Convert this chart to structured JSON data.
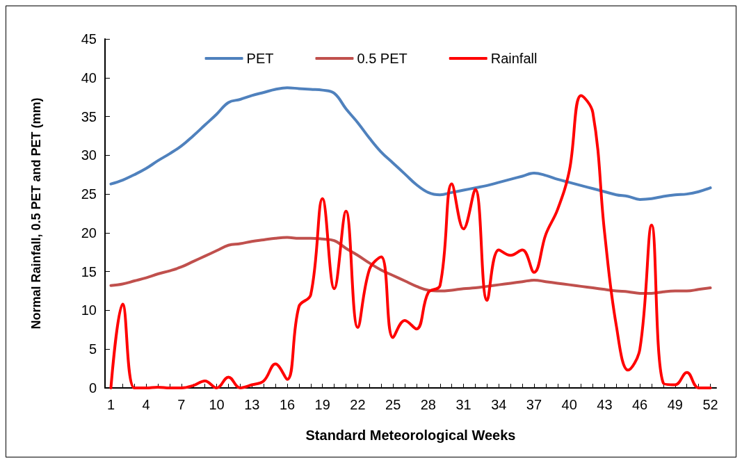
{
  "chart_data": {
    "type": "line",
    "xlabel": "Standard Meteorological Weeks",
    "ylabel": "Normal Rainfall, 0.5 PET and PET (mm)",
    "categories": [
      "1",
      null,
      null,
      "4",
      null,
      null,
      "7",
      null,
      null,
      "10",
      null,
      null,
      "13",
      null,
      null,
      "16",
      null,
      null,
      "19",
      null,
      null,
      "22",
      null,
      null,
      "25",
      null,
      null,
      "28",
      null,
      null,
      "31",
      null,
      null,
      "34",
      null,
      null,
      "37",
      null,
      null,
      "40",
      null,
      null,
      "43",
      null,
      null,
      "46",
      null,
      null,
      "49",
      null,
      null,
      "52"
    ],
    "series": [
      {
        "name": "PET",
        "color": "#4f81bd",
        "values": [
          26.3,
          26.8,
          27.5,
          28.3,
          29.3,
          30.2,
          31.2,
          32.5,
          33.9,
          35.3,
          36.8,
          37.2,
          37.7,
          38.1,
          38.5,
          38.7,
          38.6,
          38.5,
          38.4,
          38,
          36,
          34.2,
          32.2,
          30.4,
          29,
          27.6,
          26.2,
          25.2,
          24.9,
          25.2,
          25.5,
          25.8,
          26.1,
          26.5,
          26.9,
          27.3,
          27.7,
          27.4,
          26.9,
          26.5,
          26.1,
          25.7,
          25.3,
          24.9,
          24.7,
          24.3,
          24.4,
          24.7,
          24.9,
          25,
          25.3,
          25.8
        ]
      },
      {
        "name": "0.5 PET",
        "color": "#c0504d",
        "values": [
          13.2,
          13.4,
          13.8,
          14.2,
          14.7,
          15.1,
          15.6,
          16.3,
          17,
          17.7,
          18.4,
          18.6,
          18.9,
          19.1,
          19.3,
          19.4,
          19.3,
          19.3,
          19.2,
          19,
          18,
          17.1,
          16.1,
          15.2,
          14.5,
          13.8,
          13.1,
          12.6,
          12.5,
          12.6,
          12.8,
          12.9,
          13.1,
          13.3,
          13.5,
          13.7,
          13.9,
          13.7,
          13.5,
          13.3,
          13.1,
          12.9,
          12.7,
          12.5,
          12.4,
          12.2,
          12.2,
          12.4,
          12.5,
          12.5,
          12.7,
          12.9
        ]
      },
      {
        "name": "Rainfall",
        "color": "#ff0000",
        "values": [
          0,
          10.8,
          0,
          0,
          0.1,
          0,
          0,
          0.3,
          0.9,
          0,
          1.4,
          0,
          0.4,
          0.9,
          3.1,
          1.1,
          10.5,
          12,
          24.4,
          12.8,
          22.8,
          7.8,
          15.3,
          16.9,
          6.5,
          8.7,
          7.6,
          12.3,
          13.2,
          26.3,
          20.5,
          25.6,
          11.3,
          17.8,
          17.1,
          17.8,
          14.9,
          19.8,
          23,
          28,
          37.7,
          35.5,
          20,
          8,
          2.3,
          5,
          21,
          0.6,
          0.4,
          2,
          0,
          0
        ]
      }
    ],
    "ylim": [
      0,
      45
    ],
    "yticks": [
      0,
      5,
      10,
      15,
      20,
      25,
      30,
      35,
      40,
      45
    ],
    "grid": false,
    "legend": "top",
    "marker": "none",
    "line_style": "solid"
  }
}
